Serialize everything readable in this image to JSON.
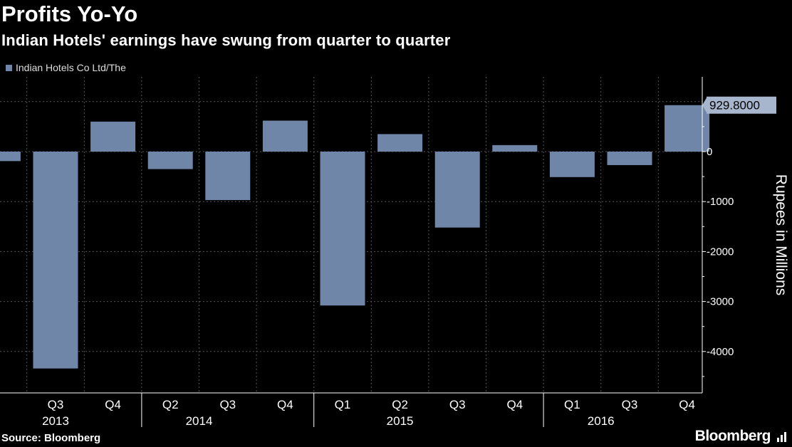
{
  "title": "Profits Yo-Yo",
  "subtitle": "Indian Hotels' earnings have swung from quarter to quarter",
  "source": "Source: Bloomberg",
  "brand": "Bloomberg",
  "colors": {
    "bar": "#6f86a8",
    "background": "#000000",
    "grid": "#555555"
  },
  "chart_data": {
    "type": "bar",
    "series": [
      {
        "name": "Indian Hotels Co Ltd/The",
        "values": [
          -190,
          -4340,
          600,
          -350,
          -970,
          620,
          -3080,
          350,
          -1520,
          130,
          -510,
          -270,
          929.8
        ]
      }
    ],
    "categories": [
      "",
      "Q3",
      "Q4",
      "Q2",
      "Q3",
      "Q4",
      "Q1",
      "Q2",
      "Q3",
      "Q4",
      "Q1",
      "Q3",
      "Q4"
    ],
    "year_labels": [
      {
        "label": "2013",
        "category_index": 1
      },
      {
        "label": "2014",
        "category_index": 3.5
      },
      {
        "label": "2015",
        "category_index": 7
      },
      {
        "label": "2016",
        "category_index": 10.5
      }
    ],
    "year_separators_after_index": [
      2,
      5,
      9
    ],
    "ylabel": "Rupees in Millions",
    "ylim": [
      -4800,
      1400
    ],
    "yticks": [
      0,
      -1000,
      -2000,
      -3000,
      -4000
    ],
    "ytick_labels": [
      "0",
      "-1000",
      "-2000",
      "-3000",
      "-4000"
    ],
    "last_value_label": "929.8000",
    "grid": true,
    "legend_position": "top-left"
  }
}
